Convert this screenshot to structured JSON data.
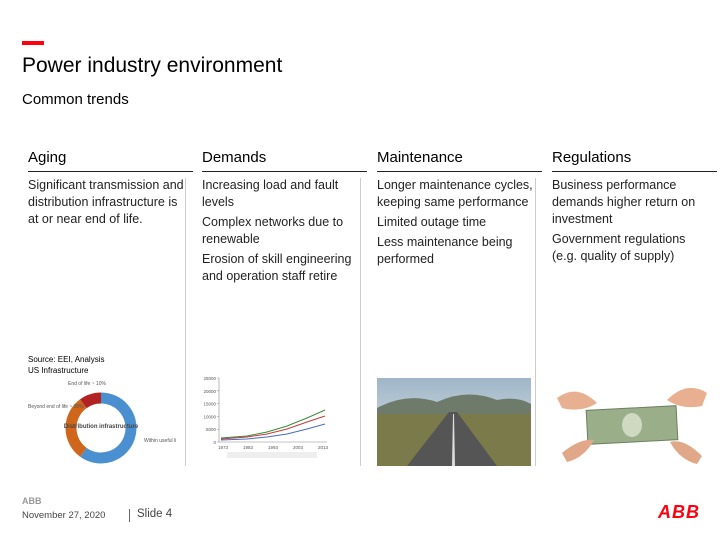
{
  "header": {
    "title": "Power industry environment",
    "subtitle": "Common trends"
  },
  "columns": [
    {
      "heading": "Aging",
      "items": [
        "Significant transmission and distribution infrastructure is at or near end of life."
      ]
    },
    {
      "heading": "Demands",
      "items": [
        "Increasing load and fault levels",
        "Complex networks due to renewable",
        "Erosion of skill engineering and operation staff retire"
      ]
    },
    {
      "heading": "Maintenance",
      "items": [
        "Longer maintenance cycles, keeping same performance",
        "Limited outage time",
        "Less maintenance being performed"
      ]
    },
    {
      "heading": "Regulations",
      "items": [
        "Business performance demands higher return on investment",
        "Government regulations (e.g. quality of supply)"
      ]
    }
  ],
  "donut_chart": {
    "type": "pie",
    "source": "Source: EEI, Analysis",
    "title": "US Infrastructure",
    "center_label": "Distribution infrastructure",
    "categories": [
      "Within useful life ~ 60%",
      "Beyond end of life ~ 30%",
      "End of life ~ 10%"
    ],
    "values": [
      60,
      30,
      10
    ],
    "colors": [
      "#4a90d0",
      "#d0661c",
      "#b22222"
    ]
  },
  "line_chart": {
    "type": "line",
    "xticks": [
      1973,
      1983,
      1993,
      2003,
      2013
    ],
    "yticks": [
      0,
      5000,
      10000,
      15000,
      20000,
      25000
    ],
    "ylim": [
      0,
      25000
    ]
  },
  "footer": {
    "logo_small": "ABB",
    "date": "November 27, 2020",
    "slide": "Slide 4",
    "logo": "ABB"
  }
}
